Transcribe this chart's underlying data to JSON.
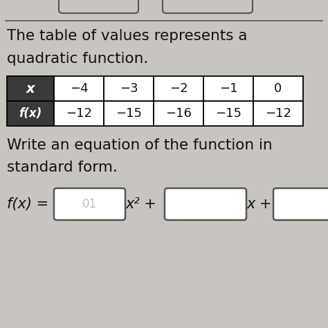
{
  "title_line1": "The table of values represents a",
  "title_line2": "quadratic function.",
  "subtitle_line1": "Write an equation of the function in",
  "subtitle_line2": "standard form.",
  "x_label": "x",
  "fx_label": "f(x)",
  "x_values": [
    "−4",
    "−3",
    "−2",
    "−1",
    "0"
  ],
  "fx_values": [
    "−12",
    "−15",
    "−16",
    "−15",
    "−12"
  ],
  "equation_prefix": "f(x) = ",
  "box1_text": "01",
  "x2_text": "x² + ",
  "x_text": "x + ",
  "header_bg": "#3a3a3a",
  "header_text_color": "#ffffff",
  "cell_bg": "#ffffff",
  "cell_border": "#000000",
  "bg_color": "#c8c4c0",
  "text_color": "#111111",
  "box_edge_color": "#555555",
  "top_line_color": "#555555",
  "top_boxes_color": "#c8c4c0",
  "font_size_title": 15.5,
  "font_size_table": 13,
  "font_size_eq": 15
}
